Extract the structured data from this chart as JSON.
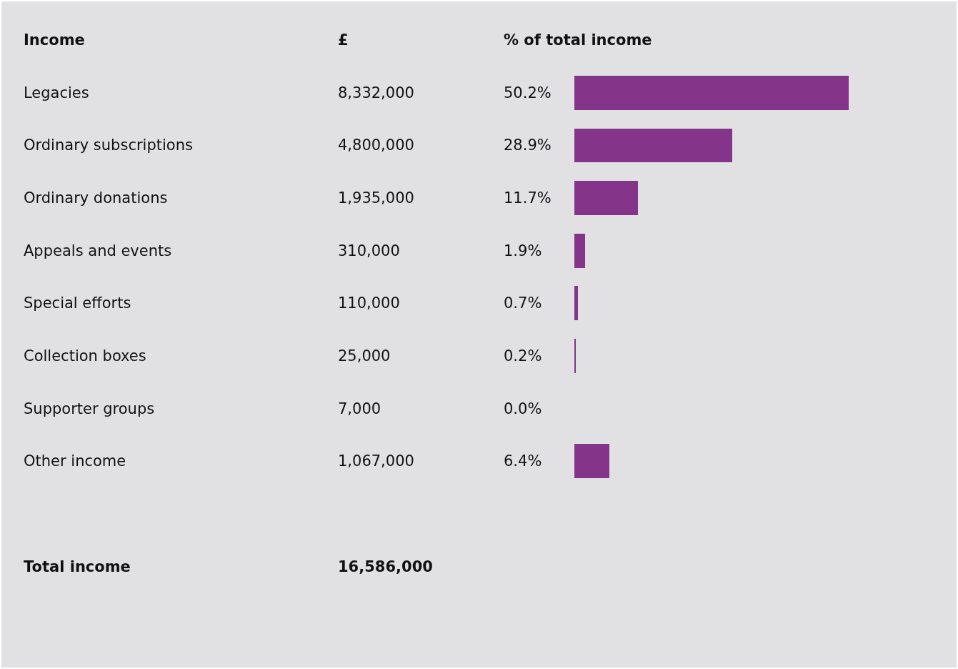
{
  "chart_data": {
    "type": "bar",
    "orientation": "horizontal",
    "ylabel": "Income",
    "xlabel": "% of total income",
    "categories": [
      "Legacies",
      "Ordinary subscriptions",
      "Ordinary donations",
      "Appeals and events",
      "Special efforts",
      "Collection boxes",
      "Supporter groups",
      "Other income"
    ],
    "values": [
      50.2,
      28.9,
      11.7,
      1.9,
      0.7,
      0.2,
      0.0,
      6.4
    ],
    "value_labels": [
      "50.2%",
      "28.9%",
      "11.7%",
      "1.9%",
      "0.7%",
      "0.2%",
      "0.0%",
      "6.4%"
    ],
    "color": "#84358a",
    "tick_labels": false,
    "grid": false,
    "legend": false,
    "annotations": [
      "£",
      "8,332,000",
      "4,800,000",
      "1,935,000",
      "310,000",
      "110,000",
      "25,000",
      "7,000",
      "1,067,000",
      "Total income",
      "16,586,000"
    ]
  }
}
